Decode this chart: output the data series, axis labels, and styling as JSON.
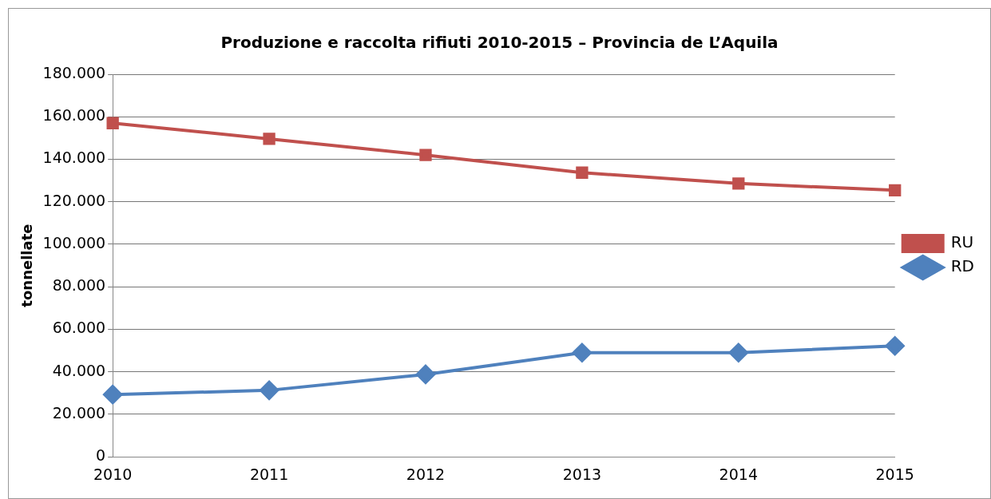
{
  "chart_data": {
    "type": "line",
    "title": "Produzione e raccolta rifiuti 2010-2015 – Provincia de L’Aquila",
    "ylabel": "tonnellate",
    "categories": [
      "2010",
      "2011",
      "2012",
      "2013",
      "2014",
      "2015"
    ],
    "series": [
      {
        "name": "RU",
        "color": "#c0504d",
        "marker": "square",
        "values": [
          157000,
          149600,
          142000,
          133700,
          128600,
          125400
        ]
      },
      {
        "name": "RD",
        "color": "#4f81bd",
        "marker": "diamond",
        "values": [
          29300,
          31300,
          38800,
          49000,
          49000,
          52200
        ]
      }
    ],
    "ylim": [
      0,
      180000
    ],
    "yticks": [
      {
        "value": 0,
        "label": "0"
      },
      {
        "value": 20000,
        "label": "20.000"
      },
      {
        "value": 40000,
        "label": "40.000"
      },
      {
        "value": 60000,
        "label": "60.000"
      },
      {
        "value": 80000,
        "label": "80.000"
      },
      {
        "value": 100000,
        "label": "100.000"
      },
      {
        "value": 120000,
        "label": "120.000"
      },
      {
        "value": 140000,
        "label": "140.000"
      },
      {
        "value": 160000,
        "label": "160.000"
      },
      {
        "value": 180000,
        "label": "180.000"
      }
    ],
    "grid": "y",
    "legend": "right",
    "line_style": "solid"
  }
}
